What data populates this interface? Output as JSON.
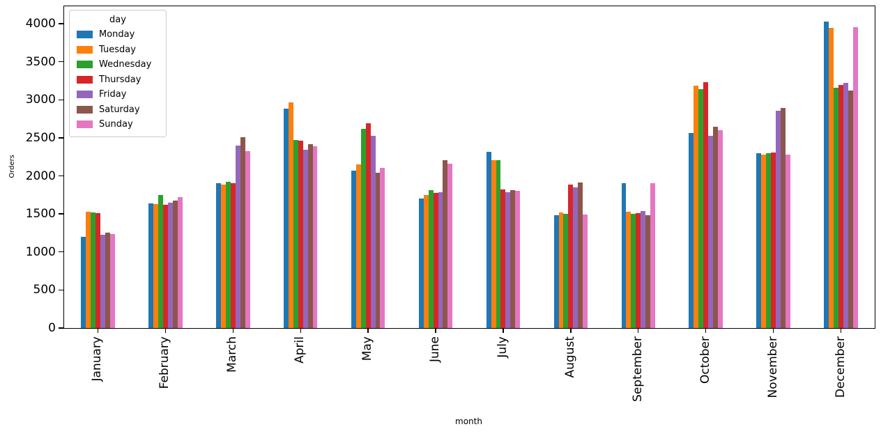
{
  "figure": {
    "background": "#ffffff",
    "ylabel": "Orders",
    "xlabel": "month",
    "legend_title": "day"
  },
  "chart_data": {
    "type": "bar",
    "title": "",
    "xlabel": "month",
    "ylabel": "Orders",
    "grid": false,
    "legend": {
      "title": "day",
      "position": "upper left"
    },
    "ylim": [
      0,
      4230
    ],
    "yticks": [
      0,
      500,
      1000,
      1500,
      2000,
      2500,
      3000,
      3500,
      4000
    ],
    "categories": [
      "January",
      "February",
      "March",
      "April",
      "May",
      "June",
      "July",
      "August",
      "September",
      "October",
      "November",
      "December"
    ],
    "series": [
      {
        "name": "Monday",
        "color": "#1f77b4",
        "values": [
          1200,
          1640,
          1900,
          2880,
          2070,
          1700,
          2320,
          1480,
          1900,
          2560,
          2300,
          4030
        ]
      },
      {
        "name": "Tuesday",
        "color": "#ff7f0e",
        "values": [
          1530,
          1630,
          1890,
          2970,
          2150,
          1750,
          2210,
          1520,
          1530,
          3190,
          2280,
          3950
        ]
      },
      {
        "name": "Wednesday",
        "color": "#2ca02c",
        "values": [
          1520,
          1750,
          1920,
          2470,
          2620,
          1810,
          2210,
          1500,
          1500,
          3140,
          2300,
          3160
        ]
      },
      {
        "name": "Thursday",
        "color": "#d62728",
        "values": [
          1510,
          1620,
          1900,
          2460,
          2690,
          1780,
          1820,
          1890,
          1510,
          3230,
          2310,
          3200
        ]
      },
      {
        "name": "Friday",
        "color": "#9467bd",
        "values": [
          1230,
          1650,
          2400,
          2340,
          2530,
          1790,
          1790,
          1850,
          1540,
          2530,
          2860,
          3220
        ]
      },
      {
        "name": "Saturday",
        "color": "#8c564b",
        "values": [
          1250,
          1680,
          2510,
          2420,
          2040,
          2210,
          1810,
          1910,
          1480,
          2650,
          2890,
          3120
        ]
      },
      {
        "name": "Sunday",
        "color": "#e377c2",
        "values": [
          1240,
          1720,
          2330,
          2390,
          2110,
          2160,
          1800,
          1490,
          1900,
          2600,
          2280,
          3960
        ]
      }
    ]
  }
}
